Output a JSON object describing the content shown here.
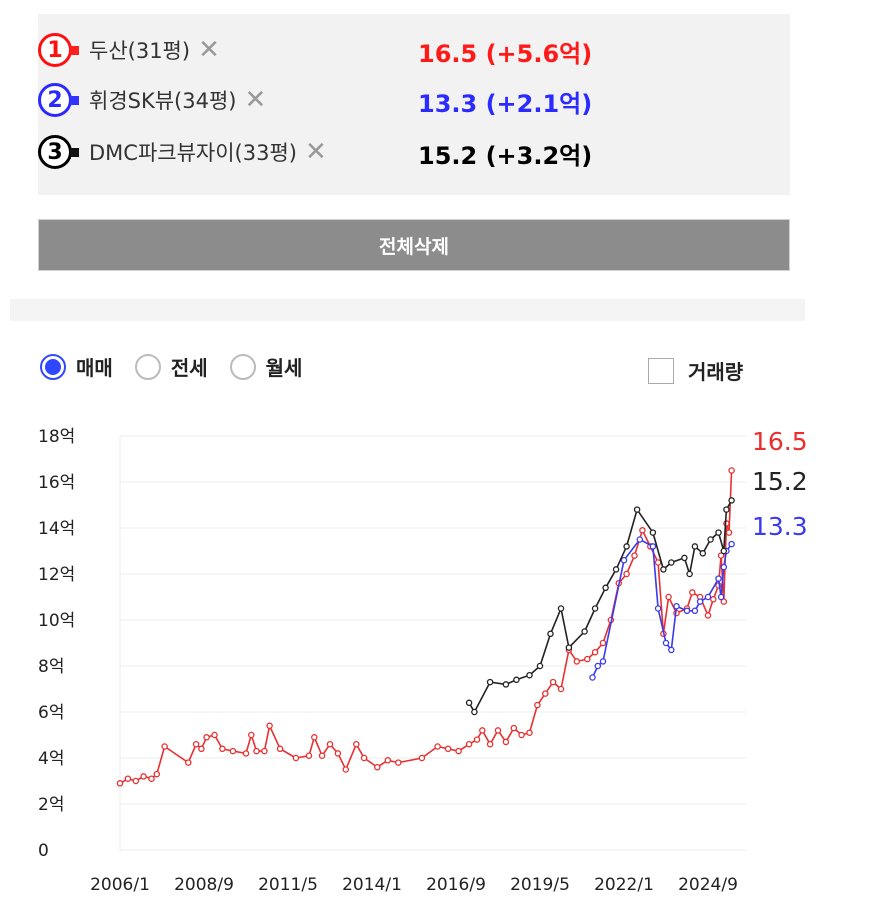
{
  "compare_list": [
    {
      "badge": "1",
      "color": "#ff2020",
      "badge_color": "#ff1010",
      "name": "두산(31평)",
      "remove_icon": "close-icon",
      "price": "16.5 (+5.6억)",
      "price_color": "#ff1a1a"
    },
    {
      "badge": "2",
      "color": "#3333ff",
      "badge_color": "#2a2aff",
      "name": "휘경SK뷰(34평)",
      "remove_icon": "close-icon",
      "price": "13.3 (+2.1억)",
      "price_color": "#2b2bff"
    },
    {
      "badge": "3",
      "color": "#111111",
      "badge_color": "#000000",
      "name": "DMC파크뷰자이(33평)",
      "remove_icon": "close-icon",
      "price": "15.2 (+3.2억)",
      "price_color": "#000000"
    }
  ],
  "delete_all_label": "전체삭제",
  "deal_types": [
    {
      "label": "매매",
      "selected": true
    },
    {
      "label": "전세",
      "selected": false
    },
    {
      "label": "월세",
      "selected": false
    }
  ],
  "volume_label": "거래량",
  "chart_data": {
    "type": "line",
    "x_ticks": [
      "2006/1",
      "2008/9",
      "2011/5",
      "2014/1",
      "2016/9",
      "2019/5",
      "2022/1",
      "2024/9"
    ],
    "y_ticks": [
      "0",
      "2억",
      "4억",
      "6억",
      "8억",
      "10억",
      "12억",
      "14억",
      "16억",
      "18억"
    ],
    "ylim": [
      0,
      18
    ],
    "xlim": [
      "2006/1",
      "2025/6"
    ],
    "grid": true,
    "series": [
      {
        "color": "#e83030",
        "end_label": "16.5",
        "points": [
          [
            "2006/1",
            2.9
          ],
          [
            "2006/4",
            3.1
          ],
          [
            "2006/7",
            3.0
          ],
          [
            "2006/10",
            3.2
          ],
          [
            "2007/1",
            3.1
          ],
          [
            "2007/3",
            3.3
          ],
          [
            "2007/6",
            4.5
          ],
          [
            "2008/3",
            3.8
          ],
          [
            "2008/6",
            4.6
          ],
          [
            "2008/8",
            4.4
          ],
          [
            "2008/10",
            4.9
          ],
          [
            "2009/1",
            5.0
          ],
          [
            "2009/4",
            4.4
          ],
          [
            "2009/8",
            4.3
          ],
          [
            "2010/1",
            4.2
          ],
          [
            "2010/3",
            5.0
          ],
          [
            "2010/5",
            4.3
          ],
          [
            "2010/8",
            4.3
          ],
          [
            "2010/10",
            5.4
          ],
          [
            "2011/2",
            4.4
          ],
          [
            "2011/8",
            4.0
          ],
          [
            "2012/1",
            4.1
          ],
          [
            "2012/3",
            4.9
          ],
          [
            "2012/6",
            4.1
          ],
          [
            "2012/9",
            4.6
          ],
          [
            "2012/12",
            4.2
          ],
          [
            "2013/3",
            3.5
          ],
          [
            "2013/7",
            4.6
          ],
          [
            "2013/10",
            4.0
          ],
          [
            "2014/3",
            3.6
          ],
          [
            "2014/7",
            3.9
          ],
          [
            "2014/11",
            3.8
          ],
          [
            "2015/8",
            4.0
          ],
          [
            "2016/2",
            4.5
          ],
          [
            "2016/6",
            4.4
          ],
          [
            "2016/10",
            4.3
          ],
          [
            "2017/2",
            4.6
          ],
          [
            "2017/5",
            4.8
          ],
          [
            "2017/7",
            5.2
          ],
          [
            "2017/10",
            4.6
          ],
          [
            "2018/1",
            5.2
          ],
          [
            "2018/4",
            4.7
          ],
          [
            "2018/7",
            5.3
          ],
          [
            "2018/10",
            5.0
          ],
          [
            "2019/1",
            5.1
          ],
          [
            "2019/4",
            6.3
          ],
          [
            "2019/7",
            6.8
          ],
          [
            "2019/10",
            7.3
          ],
          [
            "2020/1",
            7.0
          ],
          [
            "2020/4",
            8.7
          ],
          [
            "2020/7",
            8.2
          ],
          [
            "2020/11",
            8.3
          ],
          [
            "2021/2",
            8.6
          ],
          [
            "2021/5",
            9.0
          ],
          [
            "2021/8",
            10.0
          ],
          [
            "2021/11",
            11.6
          ],
          [
            "2022/2",
            12.0
          ],
          [
            "2022/5",
            12.8
          ],
          [
            "2022/8",
            13.9
          ],
          [
            "2022/11",
            13.2
          ],
          [
            "2023/2",
            12.5
          ],
          [
            "2023/4",
            9.4
          ],
          [
            "2023/6",
            11.0
          ],
          [
            "2023/9",
            10.3
          ],
          [
            "2024/1",
            10.5
          ],
          [
            "2024/3",
            11.2
          ],
          [
            "2024/6",
            11.0
          ],
          [
            "2024/9",
            10.2
          ],
          [
            "2024/11",
            10.9
          ],
          [
            "2025/1",
            11.5
          ],
          [
            "2025/2",
            12.8
          ],
          [
            "2025/3",
            10.8
          ],
          [
            "2025/4",
            14.2
          ],
          [
            "2025/5",
            13.8
          ],
          [
            "2025/6",
            16.5
          ]
        ]
      },
      {
        "color": "#3a3aee",
        "end_label": "13.3",
        "points": [
          [
            "2021/1",
            7.5
          ],
          [
            "2021/3",
            8.0
          ],
          [
            "2021/5",
            8.2
          ],
          [
            "2022/1",
            12.6
          ],
          [
            "2022/7",
            13.5
          ],
          [
            "2022/12",
            13.2
          ],
          [
            "2023/2",
            10.5
          ],
          [
            "2023/5",
            9.0
          ],
          [
            "2023/7",
            8.7
          ],
          [
            "2023/9",
            10.6
          ],
          [
            "2024/1",
            10.4
          ],
          [
            "2024/4",
            10.4
          ],
          [
            "2024/6",
            10.8
          ],
          [
            "2024/9",
            11.0
          ],
          [
            "2025/1",
            11.8
          ],
          [
            "2025/2",
            11.0
          ],
          [
            "2025/3",
            12.3
          ],
          [
            "2025/4",
            13.0
          ],
          [
            "2025/6",
            13.3
          ]
        ]
      },
      {
        "color": "#222222",
        "end_label": "15.2",
        "points": [
          [
            "2017/2",
            6.4
          ],
          [
            "2017/4",
            6.0
          ],
          [
            "2017/10",
            7.3
          ],
          [
            "2018/4",
            7.2
          ],
          [
            "2018/8",
            7.4
          ],
          [
            "2019/1",
            7.6
          ],
          [
            "2019/5",
            8.0
          ],
          [
            "2019/9",
            9.4
          ],
          [
            "2020/1",
            10.5
          ],
          [
            "2020/4",
            8.8
          ],
          [
            "2020/10",
            9.5
          ],
          [
            "2021/2",
            10.5
          ],
          [
            "2021/6",
            11.4
          ],
          [
            "2021/10",
            12.2
          ],
          [
            "2022/2",
            13.2
          ],
          [
            "2022/6",
            14.8
          ],
          [
            "2022/12",
            13.8
          ],
          [
            "2023/4",
            12.2
          ],
          [
            "2023/7",
            12.5
          ],
          [
            "2023/12",
            12.7
          ],
          [
            "2024/2",
            12.0
          ],
          [
            "2024/4",
            13.2
          ],
          [
            "2024/7",
            12.9
          ],
          [
            "2024/10",
            13.5
          ],
          [
            "2025/1",
            13.8
          ],
          [
            "2025/3",
            13.0
          ],
          [
            "2025/4",
            14.8
          ],
          [
            "2025/6",
            15.2
          ]
        ]
      }
    ]
  }
}
